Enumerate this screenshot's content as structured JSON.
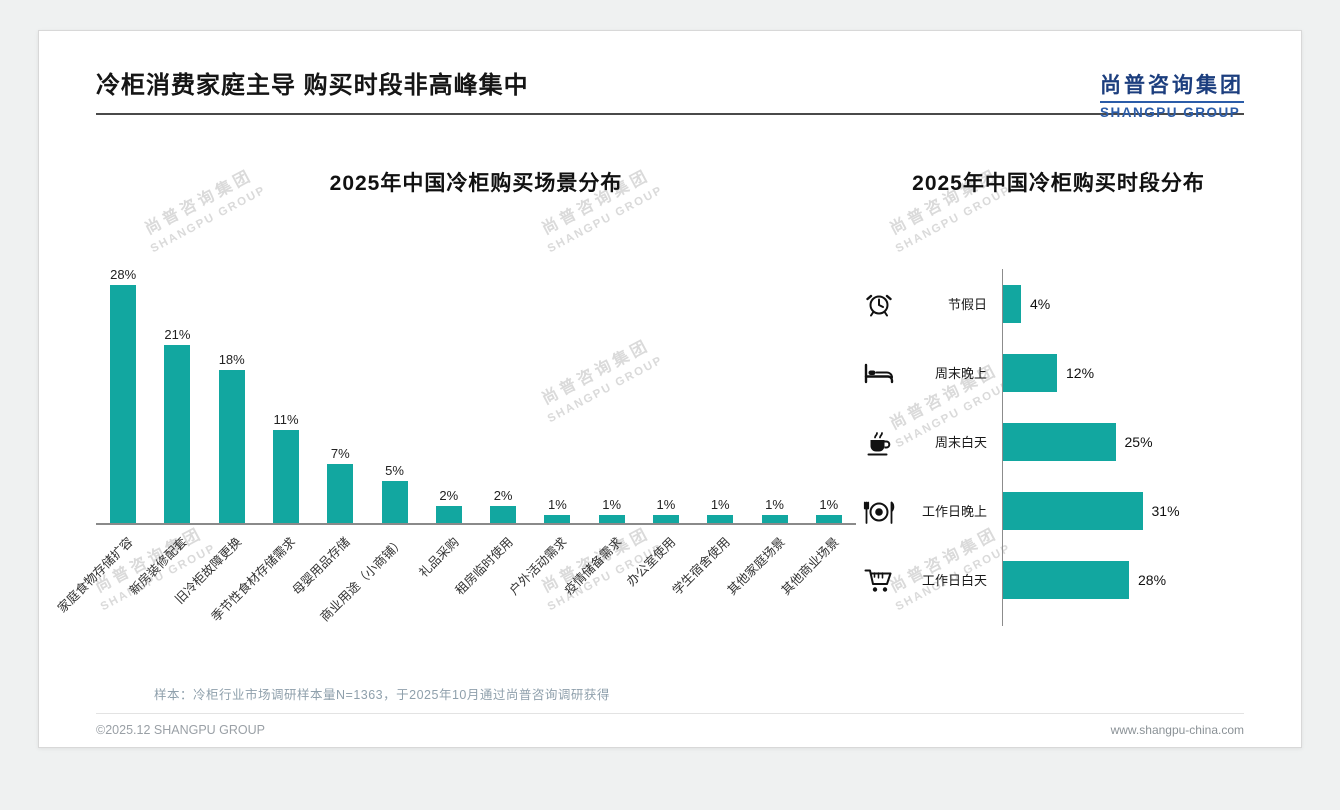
{
  "page": {
    "title": "冷柜消费家庭主导 购买时段非高峰集中",
    "logo_cn": "尚普咨询集团",
    "logo_en": "SHANGPU GROUP",
    "watermark_cn": "尚普咨询集团",
    "watermark_en": "SHANGPU GROUP",
    "note": "样本：冷柜行业市场调研样本量N=1363，于2025年10月通过尚普咨询调研获得",
    "footer_left": "©2025.12 SHANGPU GROUP",
    "footer_right": "www.shangpu-china.com"
  },
  "colors": {
    "accent": "#12A7A0",
    "logo": "#1C3E7E"
  },
  "chart_data": [
    {
      "type": "bar",
      "orientation": "vertical",
      "title": "2025年中国冷柜购买场景分布",
      "unit": "%",
      "categories": [
        "家庭食物存储扩容",
        "新房装修配套",
        "旧冷柜故障更换",
        "季节性食材存储需求",
        "母婴用品存储",
        "商业用途（小商铺）",
        "礼品采购",
        "租房临时使用",
        "户外活动需求",
        "疫情储备需求",
        "办公室使用",
        "学生宿舍使用",
        "其他家庭场景",
        "其他商业场景"
      ],
      "values": [
        28,
        21,
        18,
        11,
        7,
        5,
        2,
        2,
        1,
        1,
        1,
        1,
        1,
        1
      ],
      "ylim": [
        0,
        30
      ],
      "grid": false,
      "legend": "none"
    },
    {
      "type": "bar",
      "orientation": "horizontal",
      "title": "2025年中国冷柜购买时段分布",
      "unit": "%",
      "categories": [
        "节假日",
        "周末晚上",
        "周末白天",
        "工作日晚上",
        "工作日白天"
      ],
      "values": [
        4,
        12,
        25,
        31,
        28
      ],
      "icons": [
        "alarm-clock",
        "bed",
        "coffee",
        "dining",
        "shopping-cart"
      ],
      "xlim": [
        0,
        35
      ],
      "grid": false,
      "legend": "none"
    }
  ]
}
